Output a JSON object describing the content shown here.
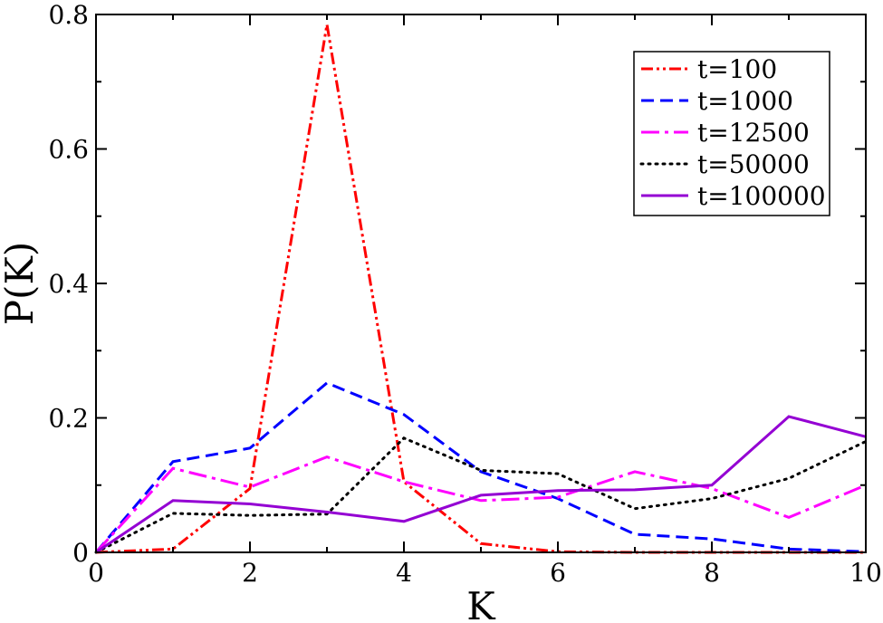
{
  "chart_data": {
    "type": "line",
    "title": "",
    "xlabel": "K",
    "ylabel": "P(K)",
    "xlim": [
      0,
      10
    ],
    "ylim": [
      0,
      0.8
    ],
    "x_ticks": [
      0,
      2,
      4,
      6,
      8,
      10
    ],
    "x_tick_labels": [
      "0",
      "2",
      "4",
      "6",
      "8",
      "10"
    ],
    "y_ticks": [
      0,
      0.2,
      0.4,
      0.6,
      0.8
    ],
    "y_tick_labels": [
      "0",
      "0.2",
      "0.4",
      "0.6",
      "0.8"
    ],
    "grid": false,
    "legend_position": "top-right",
    "x": [
      0,
      1,
      2,
      3,
      4,
      5,
      6,
      7,
      8,
      9,
      10
    ],
    "series": [
      {
        "name": "t=100",
        "color": "#ff0000",
        "style": "dash-dot-dot",
        "values": [
          0,
          0.005,
          0.095,
          0.785,
          0.105,
          0.013,
          0.001,
          0.0,
          0.0,
          0.0,
          0.0
        ]
      },
      {
        "name": "t=1000",
        "color": "#0000ff",
        "style": "dashed",
        "values": [
          0,
          0.135,
          0.155,
          0.252,
          0.205,
          0.12,
          0.08,
          0.027,
          0.02,
          0.005,
          0.001
        ]
      },
      {
        "name": "t=12500",
        "color": "#ff00ff",
        "style": "dash-dot",
        "values": [
          0,
          0.125,
          0.097,
          0.142,
          0.105,
          0.077,
          0.082,
          0.12,
          0.095,
          0.052,
          0.1
        ]
      },
      {
        "name": "t=50000",
        "color": "#000000",
        "style": "dotted",
        "values": [
          0,
          0.058,
          0.055,
          0.057,
          0.17,
          0.122,
          0.117,
          0.065,
          0.08,
          0.11,
          0.165
        ]
      },
      {
        "name": "t=100000",
        "color": "#9400d3",
        "style": "solid",
        "values": [
          0,
          0.077,
          0.072,
          0.06,
          0.046,
          0.085,
          0.092,
          0.093,
          0.1,
          0.202,
          0.172
        ]
      }
    ]
  }
}
